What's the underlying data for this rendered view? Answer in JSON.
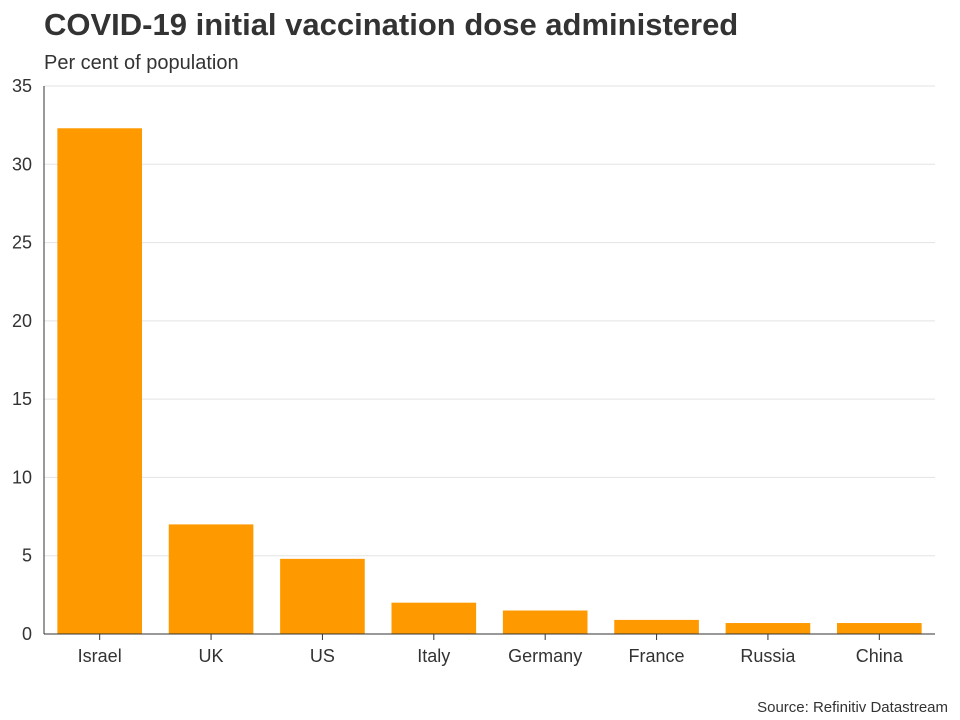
{
  "chart_data": {
    "type": "bar",
    "title": "COVID-19 initial vaccination dose administered",
    "subtitle": "Per cent of population",
    "source": "Source: Refinitiv Datastream",
    "categories": [
      "Israel",
      "UK",
      "US",
      "Italy",
      "Germany",
      "France",
      "Russia",
      "China"
    ],
    "values": [
      32.3,
      7.0,
      4.8,
      2.0,
      1.5,
      0.9,
      0.7,
      0.7
    ],
    "ylim": [
      0,
      35
    ],
    "yticks": [
      0,
      5,
      10,
      15,
      20,
      25,
      30,
      35
    ],
    "xlabel": "",
    "ylabel": "",
    "grid": true,
    "bar_color": "#FF9900"
  }
}
